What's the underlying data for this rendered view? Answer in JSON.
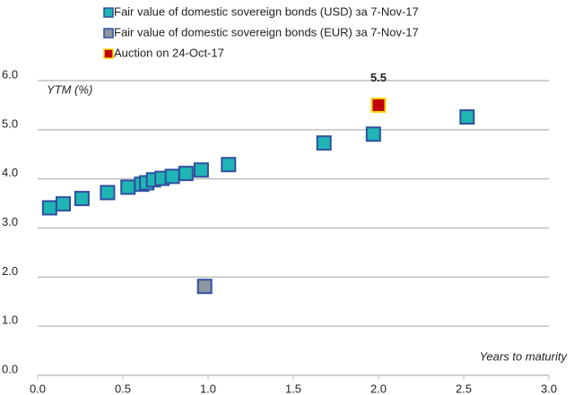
{
  "chart_data": {
    "type": "scatter",
    "y_label": "YTM (%)",
    "x_label": "Years to maturity",
    "xlim": [
      0,
      3.0
    ],
    "xticks": [
      {
        "value": 0,
        "label": "0.0"
      },
      {
        "value": 0.5,
        "label": "0.5"
      },
      {
        "value": 1,
        "label": "1.0"
      },
      {
        "value": 1.5,
        "label": "1.5"
      },
      {
        "value": 2,
        "label": "2.0"
      },
      {
        "value": 2.5,
        "label": "2.5"
      },
      {
        "value": 3,
        "label": "3.0"
      }
    ],
    "ylim": [
      0,
      6.0
    ],
    "yticks": [
      {
        "value": 0,
        "label": "0.0"
      },
      {
        "value": 1,
        "label": "1.0"
      },
      {
        "value": 2,
        "label": "2.0"
      },
      {
        "value": 3,
        "label": "3.0"
      },
      {
        "value": 4,
        "label": "4.0"
      },
      {
        "value": 5,
        "label": "5.0"
      },
      {
        "value": 6,
        "label": "6.0"
      }
    ],
    "grid": true,
    "series": [
      {
        "name": "Fair value of domestic sovereign bonds (USD) за 7-Nov-17",
        "color": "#1fb5b5",
        "edge": "#2f4f9f",
        "x": [
          0.07,
          0.15,
          0.26,
          0.41,
          0.53,
          0.61,
          0.64,
          0.68,
          0.73,
          0.79,
          0.87,
          0.96,
          1.12,
          1.68,
          1.97,
          2.52
        ],
        "values": [
          3.41,
          3.49,
          3.6,
          3.72,
          3.83,
          3.89,
          3.92,
          3.98,
          4.01,
          4.05,
          4.11,
          4.18,
          4.29,
          4.73,
          4.91,
          5.26
        ]
      },
      {
        "name": "Fair value of domestic sovereign bonds (EUR) за 7-Nov-17",
        "color": "#8c96a0",
        "edge": "#2f4f9f",
        "x": [
          0.98
        ],
        "values": [
          1.81
        ]
      },
      {
        "name": "Auction on 24-Oct-17",
        "color": "#c00000",
        "edge": "#ffd700",
        "x": [
          2.0
        ],
        "values": [
          5.5
        ],
        "show_value": true
      }
    ]
  }
}
